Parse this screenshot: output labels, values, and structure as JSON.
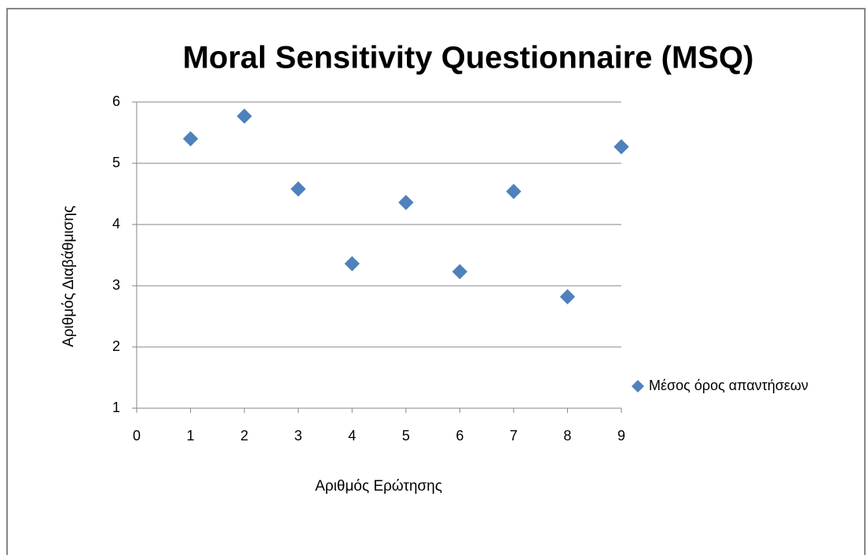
{
  "chart_data": {
    "type": "scatter",
    "title": "Moral Sensitivity Questionnaire (MSQ)",
    "x_label": "Αριθμός Ερώτησης",
    "y_label": "Αριθμός Διαβάθμισης",
    "series": [
      {
        "name": "Μέσος όρος απαντήσεων",
        "color": "#4f81bd",
        "x": [
          1,
          2,
          3,
          4,
          5,
          6,
          7,
          8,
          9
        ],
        "values": [
          5.4,
          5.77,
          4.58,
          3.36,
          4.36,
          3.23,
          4.54,
          2.82,
          5.27
        ]
      }
    ],
    "xlim": [
      0,
      9
    ],
    "xticks": [
      0,
      1,
      2,
      3,
      4,
      5,
      6,
      7,
      8,
      9
    ],
    "ylim": [
      1,
      6
    ],
    "yticks": [
      1,
      2,
      3,
      4,
      5,
      6
    ],
    "grid": true,
    "legend": "right"
  }
}
